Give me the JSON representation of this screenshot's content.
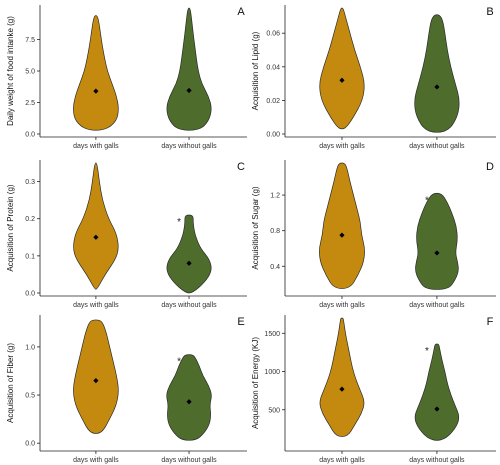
{
  "chart_data": [
    {
      "type": "violin",
      "panel": "A",
      "ylabel": "Daily weight of food intanke (g)",
      "ylim": [
        0,
        10
      ],
      "yticks": [
        "0.0",
        "2.5",
        "5.0",
        "7.5"
      ],
      "ytick_values": [
        0,
        2.5,
        5.0,
        7.5
      ],
      "categories": [
        "days with galls",
        "days without galls"
      ],
      "colors": [
        "#c38a0f",
        "#4e6d2c"
      ],
      "means": [
        3.4,
        3.45
      ],
      "ranges": [
        [
          0.3,
          9.4
        ],
        [
          0.3,
          10
        ]
      ],
      "significance": [
        "",
        ""
      ],
      "profiles": [
        [
          [
            0.3,
            0.4
          ],
          [
            1.0,
            0.9
          ],
          [
            2.0,
            1.0
          ],
          [
            3.0,
            0.9
          ],
          [
            4.0,
            0.7
          ],
          [
            5.0,
            0.5
          ],
          [
            6.0,
            0.38
          ],
          [
            7.0,
            0.28
          ],
          [
            8.0,
            0.2
          ],
          [
            9.0,
            0.12
          ],
          [
            9.4,
            0.05
          ]
        ],
        [
          [
            0.3,
            0.45
          ],
          [
            1.0,
            0.85
          ],
          [
            2.0,
            1.0
          ],
          [
            3.0,
            0.85
          ],
          [
            4.0,
            0.55
          ],
          [
            5.0,
            0.4
          ],
          [
            6.0,
            0.32
          ],
          [
            7.0,
            0.25
          ],
          [
            8.0,
            0.18
          ],
          [
            9.0,
            0.12
          ],
          [
            10.0,
            0.05
          ]
        ]
      ]
    },
    {
      "type": "violin",
      "panel": "B",
      "ylabel": "Acquisition of Lipid (g)",
      "ylim": [
        0,
        0.075
      ],
      "yticks": [
        "0.00",
        "0.02",
        "0.04",
        "0.06"
      ],
      "ytick_values": [
        0,
        0.02,
        0.04,
        0.06
      ],
      "categories": [
        "days with galls",
        "days without galls"
      ],
      "colors": [
        "#c38a0f",
        "#4e6d2c"
      ],
      "means": [
        0.032,
        0.028
      ],
      "ranges": [
        [
          0.003,
          0.075
        ],
        [
          0.001,
          0.071
        ]
      ],
      "significance": [
        "",
        ""
      ],
      "profiles": [
        [
          [
            0.003,
            0.15
          ],
          [
            0.01,
            0.5
          ],
          [
            0.02,
            0.9
          ],
          [
            0.03,
            1.0
          ],
          [
            0.04,
            0.8
          ],
          [
            0.05,
            0.55
          ],
          [
            0.06,
            0.35
          ],
          [
            0.07,
            0.15
          ],
          [
            0.075,
            0.05
          ]
        ],
        [
          [
            0.001,
            0.45
          ],
          [
            0.01,
            0.9
          ],
          [
            0.02,
            1.0
          ],
          [
            0.03,
            0.8
          ],
          [
            0.04,
            0.6
          ],
          [
            0.05,
            0.45
          ],
          [
            0.06,
            0.35
          ],
          [
            0.068,
            0.25
          ],
          [
            0.071,
            0.1
          ]
        ]
      ]
    },
    {
      "type": "violin",
      "panel": "C",
      "ylabel": "Acquisition of Protein (g)",
      "ylim": [
        0,
        0.35
      ],
      "yticks": [
        "0.0",
        "0.1",
        "0.2",
        "0.3"
      ],
      "ytick_values": [
        0,
        0.1,
        0.2,
        0.3
      ],
      "categories": [
        "days with galls",
        "days without galls"
      ],
      "colors": [
        "#c38a0f",
        "#4e6d2c"
      ],
      "means": [
        0.15,
        0.08
      ],
      "ranges": [
        [
          0.01,
          0.35
        ],
        [
          0.0,
          0.21
        ]
      ],
      "significance": [
        "",
        "*"
      ],
      "profiles": [
        [
          [
            0.01,
            0.05
          ],
          [
            0.05,
            0.4
          ],
          [
            0.09,
            0.85
          ],
          [
            0.12,
            1.0
          ],
          [
            0.16,
            0.9
          ],
          [
            0.2,
            0.55
          ],
          [
            0.25,
            0.28
          ],
          [
            0.3,
            0.15
          ],
          [
            0.35,
            0.05
          ]
        ],
        [
          [
            0.0,
            0.15
          ],
          [
            0.03,
            0.7
          ],
          [
            0.06,
            1.0
          ],
          [
            0.09,
            0.9
          ],
          [
            0.12,
            0.5
          ],
          [
            0.15,
            0.3
          ],
          [
            0.17,
            0.22
          ],
          [
            0.19,
            0.18
          ],
          [
            0.21,
            0.18
          ]
        ]
      ]
    },
    {
      "type": "violin",
      "panel": "D",
      "ylabel": "Acquisition of Sugar (g)",
      "ylim": [
        0.1,
        1.56
      ],
      "yticks": [
        "0.4",
        "0.8",
        "1.2"
      ],
      "ytick_values": [
        0.4,
        0.8,
        1.2
      ],
      "categories": [
        "days with galls",
        "days without galls"
      ],
      "colors": [
        "#c38a0f",
        "#4e6d2c"
      ],
      "means": [
        0.75,
        0.55
      ],
      "ranges": [
        [
          0.15,
          1.56
        ],
        [
          0.14,
          1.22
        ]
      ],
      "significance": [
        "",
        "*"
      ],
      "profiles": [
        [
          [
            0.15,
            0.35
          ],
          [
            0.3,
            0.7
          ],
          [
            0.45,
            0.95
          ],
          [
            0.6,
            1.0
          ],
          [
            0.75,
            0.85
          ],
          [
            0.9,
            0.8
          ],
          [
            1.05,
            0.65
          ],
          [
            1.2,
            0.5
          ],
          [
            1.35,
            0.35
          ],
          [
            1.5,
            0.22
          ],
          [
            1.56,
            0.12
          ]
        ],
        [
          [
            0.14,
            0.5
          ],
          [
            0.25,
            0.8
          ],
          [
            0.35,
            0.95
          ],
          [
            0.45,
            0.9
          ],
          [
            0.55,
            0.8
          ],
          [
            0.7,
            0.9
          ],
          [
            0.85,
            0.85
          ],
          [
            1.0,
            0.65
          ],
          [
            1.12,
            0.45
          ],
          [
            1.22,
            0.2
          ]
        ]
      ]
    },
    {
      "type": "violin",
      "panel": "E",
      "ylabel": "Acquisition of Fiber (g)",
      "ylim": [
        -0.05,
        1.3
      ],
      "yticks": [
        "0.0",
        "0.5",
        "1.0"
      ],
      "ytick_values": [
        0,
        0.5,
        1.0
      ],
      "categories": [
        "days with galls",
        "days without galls"
      ],
      "colors": [
        "#c38a0f",
        "#4e6d2c"
      ],
      "means": [
        0.65,
        0.43
      ],
      "ranges": [
        [
          0.1,
          1.28
        ],
        [
          0.03,
          0.92
        ]
      ],
      "significance": [
        "",
        "*"
      ],
      "profiles": [
        [
          [
            0.1,
            0.25
          ],
          [
            0.25,
            0.6
          ],
          [
            0.4,
            0.9
          ],
          [
            0.55,
            1.0
          ],
          [
            0.7,
            0.9
          ],
          [
            0.85,
            0.75
          ],
          [
            1.0,
            0.6
          ],
          [
            1.15,
            0.45
          ],
          [
            1.25,
            0.3
          ],
          [
            1.28,
            0.15
          ]
        ],
        [
          [
            0.03,
            0.3
          ],
          [
            0.1,
            0.65
          ],
          [
            0.2,
            0.9
          ],
          [
            0.3,
            0.95
          ],
          [
            0.4,
            0.9
          ],
          [
            0.5,
            1.0
          ],
          [
            0.6,
            0.85
          ],
          [
            0.7,
            0.6
          ],
          [
            0.8,
            0.45
          ],
          [
            0.9,
            0.25
          ],
          [
            0.92,
            0.12
          ]
        ]
      ]
    },
    {
      "type": "violin",
      "panel": "F",
      "ylabel": "Acquisition of Energy (KJ)",
      "ylim": [
        0,
        1700
      ],
      "yticks": [
        "500",
        "1000",
        "1500"
      ],
      "ytick_values": [
        500,
        1000,
        1500
      ],
      "categories": [
        "days with galls",
        "days without galls"
      ],
      "colors": [
        "#c38a0f",
        "#4e6d2c"
      ],
      "means": [
        770,
        510
      ],
      "ranges": [
        [
          150,
          1700
        ],
        [
          100,
          1360
        ]
      ],
      "significance": [
        "",
        "*"
      ],
      "profiles": [
        [
          [
            150,
            0.25
          ],
          [
            300,
            0.55
          ],
          [
            450,
            0.85
          ],
          [
            600,
            1.0
          ],
          [
            750,
            0.8
          ],
          [
            900,
            0.6
          ],
          [
            1050,
            0.45
          ],
          [
            1200,
            0.35
          ],
          [
            1350,
            0.25
          ],
          [
            1500,
            0.15
          ],
          [
            1650,
            0.08
          ],
          [
            1700,
            0.05
          ]
        ],
        [
          [
            100,
            0.3
          ],
          [
            250,
            0.8
          ],
          [
            400,
            1.0
          ],
          [
            550,
            0.8
          ],
          [
            700,
            0.6
          ],
          [
            850,
            0.45
          ],
          [
            1000,
            0.35
          ],
          [
            1150,
            0.22
          ],
          [
            1300,
            0.12
          ],
          [
            1360,
            0.08
          ]
        ]
      ]
    }
  ]
}
